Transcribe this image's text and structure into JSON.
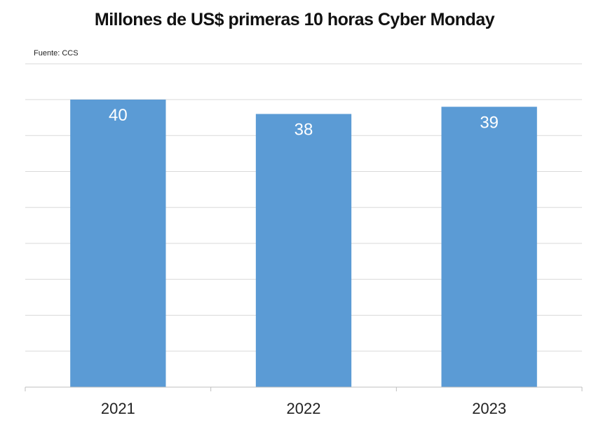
{
  "chart_data": {
    "type": "bar",
    "title": "Millones de US$ primeras 10 horas Cyber Monday",
    "source": "Fuente: CCS",
    "xlabel": "",
    "ylabel": "",
    "categories": [
      "2021",
      "2022",
      "2023"
    ],
    "values": [
      40,
      38,
      39
    ],
    "data_labels": [
      "40",
      "38",
      "39"
    ],
    "ylim": [
      0,
      40
    ],
    "grid": true,
    "legend": "none",
    "colors": {
      "bar": "#5B9BD5",
      "grid": "#D9D9D9",
      "axis": "#BFBFBF",
      "data_label": "#FFFFFF"
    }
  }
}
